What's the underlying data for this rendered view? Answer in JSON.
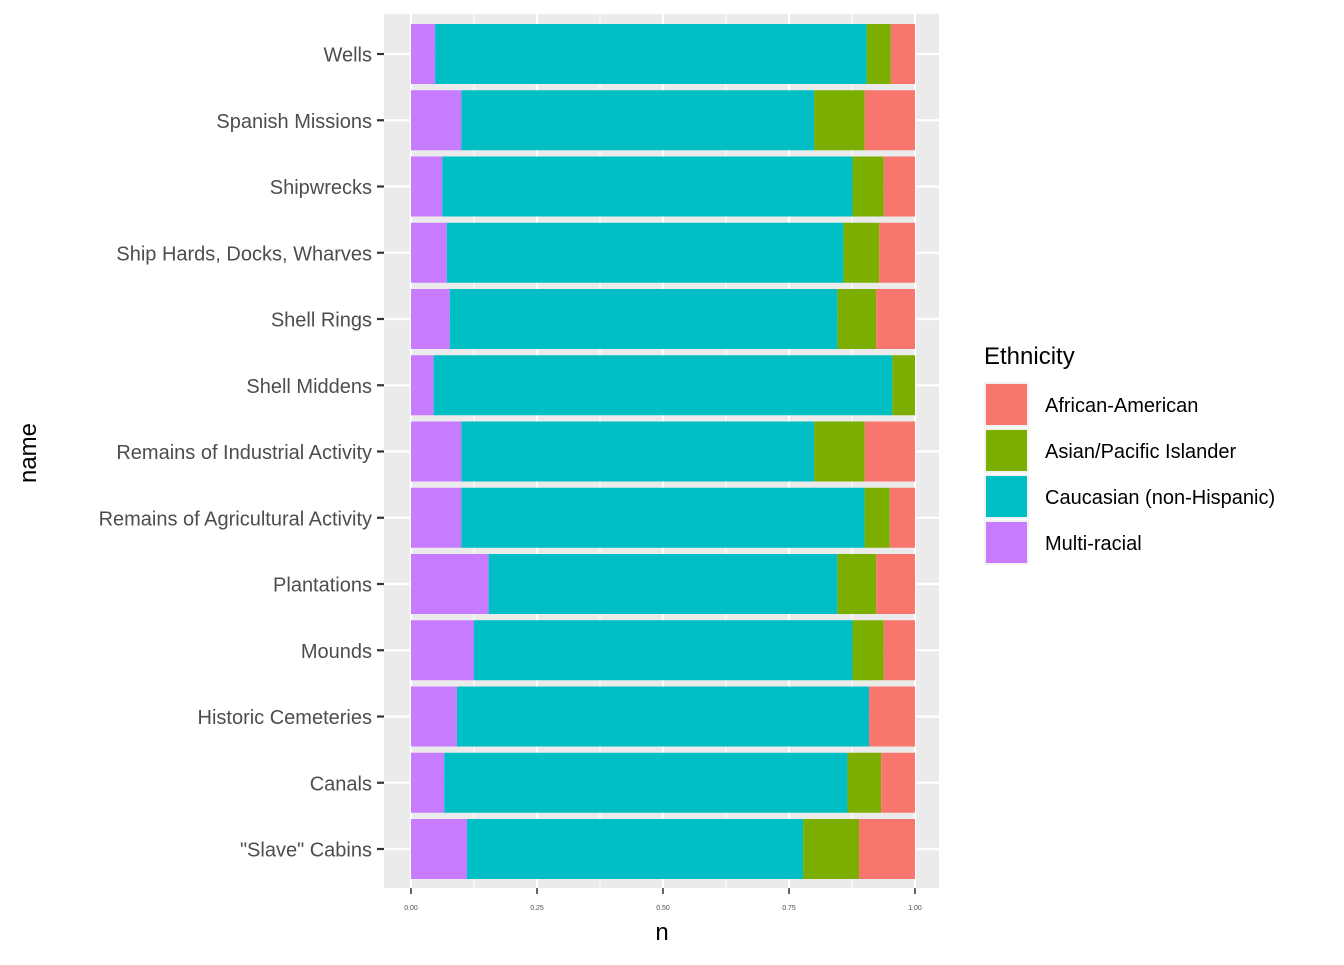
{
  "chart_data": {
    "type": "bar",
    "orientation": "horizontal",
    "stacked": "fill",
    "title": "",
    "xlabel": "n",
    "ylabel": "name",
    "xlim": [
      0,
      1
    ],
    "x_ticks": [
      "0.00",
      "0.25",
      "0.50",
      "0.75",
      "1.00"
    ],
    "grid": true,
    "legend_position": "right",
    "legend_title": "Ethnicity",
    "categories": [
      "Wells",
      "Spanish Missions",
      "Shipwrecks",
      "Ship Hards, Docks, Wharves",
      "Shell Rings",
      "Shell Middens",
      "Remains of Industrial Activity",
      "Remains of Agricultural Activity",
      "Plantations",
      "Mounds",
      "Historic Cemeteries",
      "Canals",
      "\"Slave\" Cabins"
    ],
    "stack_order": [
      "Multi-racial",
      "Caucasian (non-Hispanic)",
      "Asian/Pacific Islander",
      "African-American"
    ],
    "series": [
      {
        "name": "African-American",
        "color": "#F8766D",
        "values": [
          0.048,
          0.1,
          0.062,
          0.071,
          0.077,
          0.0,
          0.1,
          0.05,
          0.077,
          0.062,
          0.091,
          0.067,
          0.111
        ]
      },
      {
        "name": "Asian/Pacific Islander",
        "color": "#7CAE00",
        "values": [
          0.048,
          0.1,
          0.062,
          0.071,
          0.077,
          0.045,
          0.1,
          0.05,
          0.077,
          0.062,
          0.0,
          0.067,
          0.111
        ]
      },
      {
        "name": "Caucasian (non-Hispanic)",
        "color": "#00BFC4",
        "values": [
          0.856,
          0.7,
          0.814,
          0.787,
          0.769,
          0.91,
          0.7,
          0.8,
          0.692,
          0.751,
          0.818,
          0.8,
          0.667
        ]
      },
      {
        "name": "Multi-racial",
        "color": "#C77CFF",
        "values": [
          0.048,
          0.1,
          0.062,
          0.071,
          0.077,
          0.045,
          0.1,
          0.1,
          0.154,
          0.125,
          0.091,
          0.066,
          0.111
        ]
      }
    ]
  }
}
